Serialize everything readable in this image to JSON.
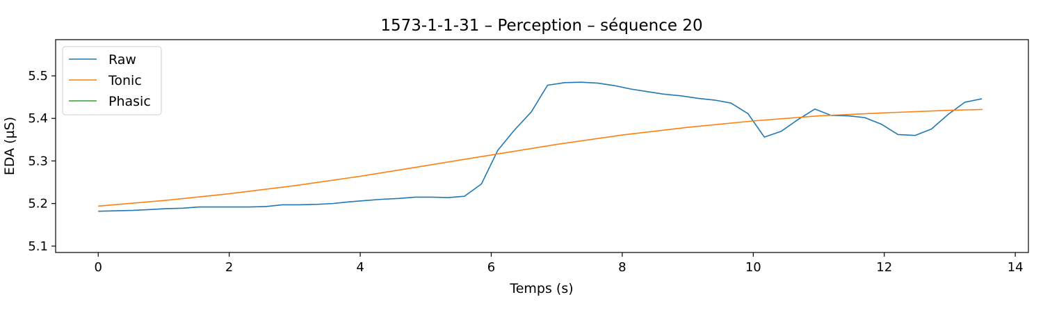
{
  "chart_data": {
    "type": "line",
    "title": "1573-1-1-31 – Perception – séquence 20",
    "xlabel": "Temps (s)",
    "ylabel": "EDA (µS)",
    "xlim": [
      -0.65,
      14.2
    ],
    "ylim": [
      5.085,
      5.585
    ],
    "xticks": [
      0,
      2,
      4,
      6,
      8,
      10,
      12,
      14
    ],
    "yticks": [
      5.1,
      5.2,
      5.3,
      5.4,
      5.5
    ],
    "xtick_labels": [
      "0",
      "2",
      "4",
      "6",
      "8",
      "10",
      "12",
      "14"
    ],
    "ytick_labels": [
      "5.1",
      "5.2",
      "5.3",
      "5.4",
      "5.5"
    ],
    "grid": false,
    "legend": {
      "placement": "top-left",
      "entries": [
        "Raw",
        "Tonic",
        "Phasic"
      ]
    },
    "colors": {
      "Raw": "#1f77b4",
      "Tonic": "#ff7f0e",
      "Phasic": "#2ca02c"
    },
    "series": [
      {
        "name": "Raw",
        "x": [
          0,
          0.27,
          0.54,
          0.81,
          1.04,
          1.29,
          1.54,
          1.8,
          2.06,
          2.31,
          2.56,
          2.81,
          3.07,
          3.33,
          3.58,
          3.83,
          4.08,
          4.33,
          4.59,
          4.84,
          5.09,
          5.34,
          5.59,
          5.85,
          6.1,
          6.35,
          6.61,
          6.86,
          7.12,
          7.37,
          7.62,
          7.88,
          8.13,
          8.38,
          8.63,
          8.9,
          9.16,
          9.41,
          9.66,
          9.92,
          10.17,
          10.43,
          10.68,
          10.94,
          11.19,
          11.45,
          11.7,
          11.96,
          12.21,
          12.47,
          12.72,
          12.98,
          13.23,
          13.49
        ],
        "y": [
          5.182,
          5.183,
          5.184,
          5.186,
          5.188,
          5.189,
          5.192,
          5.192,
          5.192,
          5.192,
          5.193,
          5.197,
          5.197,
          5.198,
          5.2,
          5.204,
          5.207,
          5.21,
          5.212,
          5.215,
          5.215,
          5.214,
          5.217,
          5.246,
          5.325,
          5.372,
          5.415,
          5.478,
          5.484,
          5.485,
          5.483,
          5.477,
          5.469,
          5.463,
          5.457,
          5.453,
          5.447,
          5.443,
          5.436,
          5.411,
          5.356,
          5.37,
          5.397,
          5.422,
          5.407,
          5.406,
          5.402,
          5.386,
          5.362,
          5.36,
          5.375,
          5.41,
          5.438,
          5.446
        ]
      },
      {
        "name": "Tonic",
        "x": [
          0,
          1,
          2,
          3,
          4,
          5,
          6,
          7,
          8,
          9,
          10,
          11,
          12,
          13,
          13.5
        ],
        "y": [
          5.194,
          5.207,
          5.223,
          5.242,
          5.264,
          5.289,
          5.314,
          5.339,
          5.361,
          5.379,
          5.394,
          5.406,
          5.413,
          5.419,
          5.421
        ]
      },
      {
        "name": "Phasic",
        "x": [],
        "y": []
      }
    ]
  }
}
